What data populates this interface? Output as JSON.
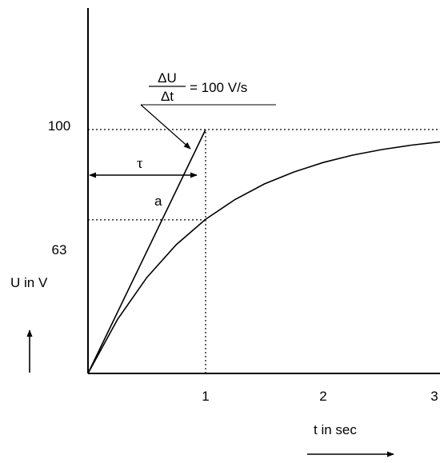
{
  "chart_data": {
    "type": "line",
    "title": "",
    "xlabel": "t in sec",
    "ylabel": "U in V",
    "x_ticks": [
      "1",
      "2",
      "3"
    ],
    "y_ticks": [
      "63",
      "100"
    ],
    "xlim": [
      0,
      3
    ],
    "ylim": [
      0,
      100
    ],
    "grid": false,
    "series": [
      {
        "name": "a",
        "x": [
          0,
          1
        ],
        "y": [
          0,
          100
        ]
      },
      {
        "x": [
          0,
          0.25,
          0.5,
          0.75,
          1,
          1.25,
          1.5,
          1.75,
          2,
          2.25,
          2.5,
          2.75,
          3
        ],
        "y": [
          0,
          22.1,
          39.3,
          52.8,
          63.2,
          71.3,
          77.7,
          82.6,
          86.5,
          89.5,
          91.8,
          93.6,
          95.0
        ]
      }
    ],
    "reference_lines": [
      {
        "axis": "y",
        "value": 100,
        "style": "dotted"
      },
      {
        "axis": "y",
        "value": 63,
        "style": "dotted",
        "x_end": 1
      },
      {
        "axis": "x",
        "value": 1,
        "style": "dotted",
        "y_end": 100
      }
    ],
    "annotations": {
      "slope_numerator": "ΔU",
      "slope_denominator": "Δt",
      "slope_value": "= 100 V/s",
      "tau_label": "τ",
      "tangent_label": "a"
    }
  }
}
